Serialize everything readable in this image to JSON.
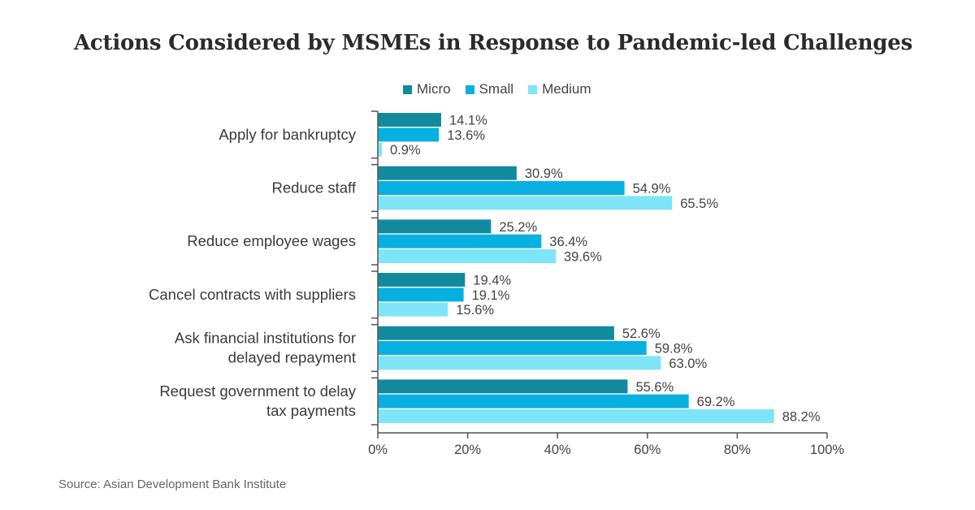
{
  "title": "Actions Considered by MSMEs in Response to Pandemic-led Challenges",
  "source": "Source: Asian Development Bank Institute",
  "chart_data": {
    "type": "bar",
    "orientation": "horizontal",
    "categories": [
      [
        "Apply for bankruptcy"
      ],
      [
        "Reduce staff"
      ],
      [
        "Reduce employee wages"
      ],
      [
        "Cancel contracts with suppliers"
      ],
      [
        "Ask financial institutions for",
        "delayed repayment"
      ],
      [
        "Request government to delay",
        "tax payments"
      ]
    ],
    "series": [
      {
        "name": "Micro",
        "color": "#128a9d",
        "values": [
          14.1,
          30.9,
          25.2,
          19.4,
          52.6,
          55.6
        ]
      },
      {
        "name": "Small",
        "color": "#08b0df",
        "values": [
          13.6,
          54.9,
          36.4,
          19.1,
          59.8,
          69.2
        ]
      },
      {
        "name": "Medium",
        "color": "#7ee5f8",
        "values": [
          0.9,
          65.5,
          39.6,
          15.6,
          63.0,
          88.2
        ]
      }
    ],
    "xlim": [
      0,
      100
    ],
    "xticks": [
      0,
      20,
      40,
      60,
      80,
      100
    ],
    "tick_suffix": "%",
    "value_suffix": "%",
    "legend_position": "top",
    "grid": false
  }
}
